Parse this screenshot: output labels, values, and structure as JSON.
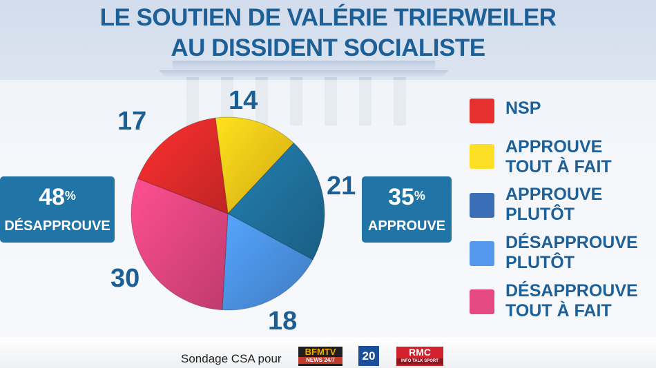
{
  "title_line1": "LE SOUTIEN DE  VALÉRIE TRIERWEILER",
  "title_line2": "AU DISSIDENT SOCIALISTE",
  "chart_data": {
    "type": "pie",
    "title": "LE SOUTIEN DE  VALÉRIE TRIERWEILER AU DISSIDENT SOCIALISTE",
    "slices": [
      {
        "label": "APPROUVE\nTOUT À FAIT",
        "value": 14,
        "color": "#f5c518"
      },
      {
        "label": "APPROUVE\nPLUTÔT",
        "value": 21,
        "color": "#1f6f9a"
      },
      {
        "label": "DÉSAPPROUVE\nPLUTÔT",
        "value": 18,
        "color": "#4a90e2"
      },
      {
        "label": "DÉSAPPROUVE\nTOUT À FAIT",
        "value": 30,
        "color": "#e0457f"
      },
      {
        "label": "NSP",
        "value": 17,
        "color": "#e12a2a"
      }
    ],
    "legend": [
      {
        "label": "NSP",
        "color": "#e63030"
      },
      {
        "label": "APPROUVE\nTOUT À FAIT",
        "color": "#fde025"
      },
      {
        "label": "APPROUVE\nPLUTÔT",
        "color": "#3a6fb7"
      },
      {
        "label": "DÉSAPPROUVE\nPLUTÔT",
        "color": "#5497ec"
      },
      {
        "label": "DÉSAPPROUVE\nTOUT À FAIT",
        "color": "#e44a80"
      }
    ],
    "legend_position": "right",
    "totals": [
      {
        "value": "48",
        "unit": "%",
        "label": "DÉSAPPROUVE"
      },
      {
        "value": "35",
        "unit": "%",
        "label": "APPROUVE"
      }
    ]
  },
  "footer": {
    "source": "Sondage CSA pour",
    "logos": [
      "BFMTV",
      "NEWS 24/7",
      "20",
      "RMC",
      "INFO TALK SPORT"
    ]
  }
}
